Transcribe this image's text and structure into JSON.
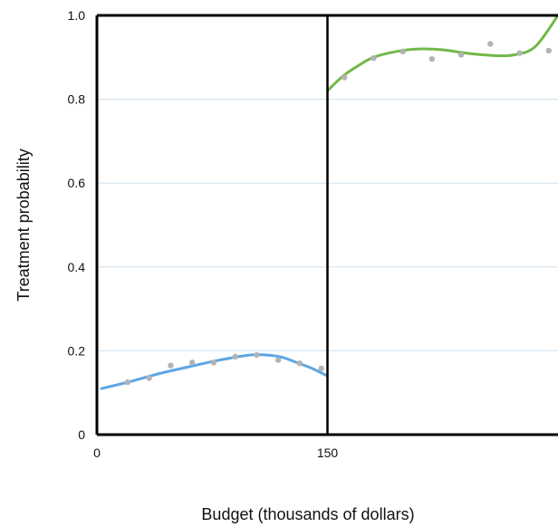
{
  "chart_data": {
    "type": "scatter",
    "title": "",
    "xlabel": "Budget (thousands of dollars)",
    "ylabel": "Treatment probability",
    "xlim": [
      0,
      300
    ],
    "ylim": [
      0,
      1.0
    ],
    "x_ticks": [
      0,
      150
    ],
    "y_ticks": [
      0,
      0.2,
      0.4,
      0.6,
      0.8,
      1.0
    ],
    "y_tick_labels": [
      "0",
      "0.2",
      "0.4",
      "0.6",
      "0.8",
      "1.0"
    ],
    "grid": "horizontal",
    "cutoff": 150,
    "colors": {
      "points": "#b3b3b3",
      "left_fit": "#5ba6e6",
      "right_fit": "#72b84a",
      "grid": "#cfe0ee",
      "frame": "#000000"
    },
    "points": [
      {
        "x": 20,
        "y": 0.125
      },
      {
        "x": 34,
        "y": 0.135
      },
      {
        "x": 48,
        "y": 0.165
      },
      {
        "x": 62,
        "y": 0.172
      },
      {
        "x": 76,
        "y": 0.172
      },
      {
        "x": 90,
        "y": 0.186
      },
      {
        "x": 104,
        "y": 0.19
      },
      {
        "x": 118,
        "y": 0.178
      },
      {
        "x": 132,
        "y": 0.17
      },
      {
        "x": 146,
        "y": 0.158
      },
      {
        "x": 161,
        "y": 0.852
      },
      {
        "x": 180,
        "y": 0.898
      },
      {
        "x": 199,
        "y": 0.914
      },
      {
        "x": 218,
        "y": 0.896
      },
      {
        "x": 237,
        "y": 0.906
      },
      {
        "x": 256,
        "y": 0.932
      },
      {
        "x": 275,
        "y": 0.91
      },
      {
        "x": 294,
        "y": 0.916
      }
    ],
    "series": [
      {
        "side": "left",
        "x": [
          3,
          20,
          40,
          60,
          80,
          100,
          110,
          120,
          130,
          140,
          150
        ],
        "y": [
          0.11,
          0.125,
          0.145,
          0.162,
          0.178,
          0.19,
          0.19,
          0.185,
          0.172,
          0.158,
          0.14
        ]
      },
      {
        "side": "right",
        "x": [
          150,
          160,
          170,
          180,
          195,
          210,
          225,
          240,
          255,
          270,
          285,
          300
        ],
        "y": [
          0.82,
          0.855,
          0.88,
          0.9,
          0.914,
          0.92,
          0.918,
          0.91,
          0.905,
          0.905,
          0.925,
          1.0
        ]
      }
    ]
  }
}
